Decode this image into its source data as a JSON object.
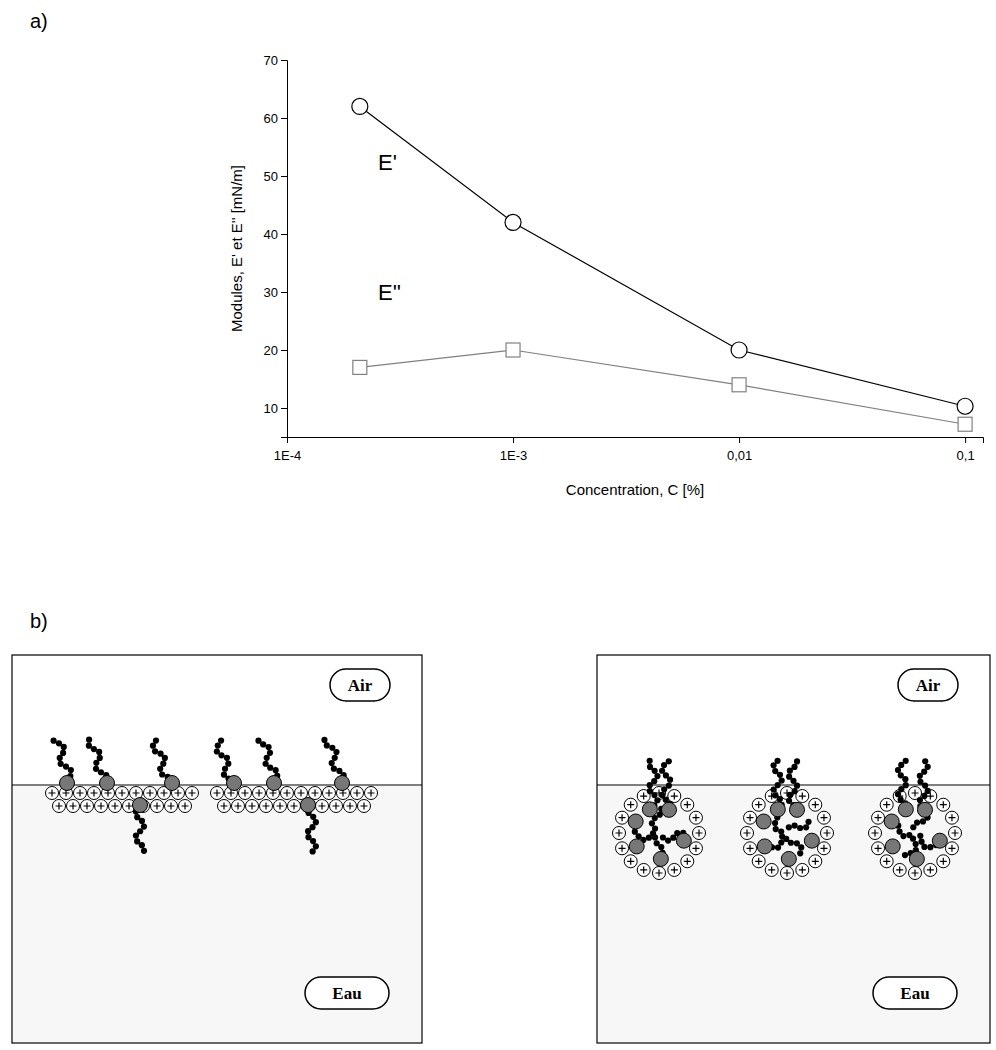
{
  "chart_data": {
    "type": "line",
    "x_label": "Concentration, C [%]",
    "y_label": "Modules, E' et E''  [mN/m]",
    "x": [
      0.00021,
      0.001,
      0.01,
      0.1
    ],
    "series": [
      {
        "name": "E'",
        "color": "#000000",
        "marker": "circle",
        "values": [
          62,
          42,
          20,
          10.3
        ]
      },
      {
        "name": "E''",
        "color": "#808080",
        "marker": "square",
        "values": [
          17,
          20,
          14,
          7.2
        ]
      }
    ],
    "log": "x",
    "xlim": [
      0.0001,
      0.12
    ],
    "xticks": [
      {
        "value": 0.0001,
        "label": "1E-4"
      },
      {
        "value": 0.001,
        "label": "1E-3"
      },
      {
        "value": 0.01,
        "label": "0,01"
      },
      {
        "value": 0.1,
        "label": "0,1"
      }
    ],
    "ylim": [
      5,
      70
    ],
    "yticks": [
      10,
      20,
      30,
      40,
      50,
      60,
      70
    ],
    "grid": false
  },
  "panel_labels": [
    "a)",
    "b)"
  ],
  "diagram": {
    "panels": [
      {
        "top": "Air",
        "bottom": "Eau"
      },
      {
        "top": "Air",
        "bottom": "Eau"
      }
    ]
  }
}
